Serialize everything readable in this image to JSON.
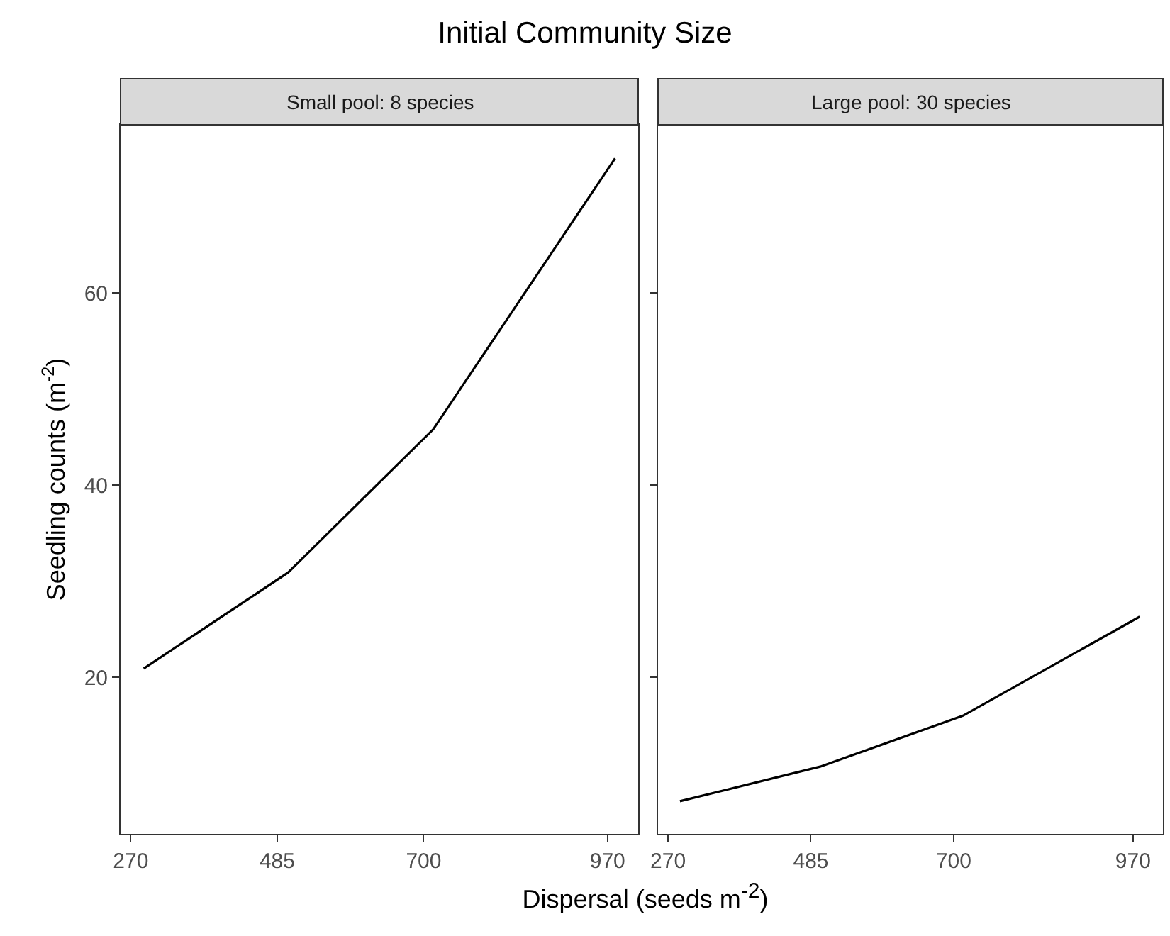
{
  "chart_data": [
    {
      "type": "line",
      "title": "Small pool: 8 species",
      "annotations": [
        "Initial Community Size"
      ],
      "xlabel": "Dispersal (seeds m$^{-2}$)",
      "ylabel": "Seedling counts (m$^{-2}$)",
      "x": [
        289,
        501,
        714,
        981
      ],
      "series": [
        {
          "color": "#000000",
          "values": [
            20.9,
            30.9,
            45.8,
            74.0
          ]
        }
      ],
      "xlim": [
        255,
        1015
      ],
      "xticks": [
        270,
        485,
        700,
        970
      ],
      "ylim": [
        3.7,
        77.5
      ],
      "yticks": [
        20,
        40,
        60
      ],
      "grid": false,
      "marker": "none",
      "line_style": "solid"
    },
    {
      "type": "line",
      "title": "Large pool: 30 species",
      "x": [
        288,
        499,
        714,
        980
      ],
      "series": [
        {
          "color": "#000000",
          "values": [
            7.1,
            10.7,
            16.0,
            26.3
          ]
        }
      ],
      "xlim": [
        255,
        1015
      ],
      "xticks": [
        270,
        485,
        700,
        970
      ],
      "ylim": [
        3.7,
        77.5
      ],
      "yticks": [
        20,
        40,
        60
      ],
      "grid": false,
      "marker": "none",
      "line_style": "solid",
      "tick_labels": "x"
    }
  ]
}
